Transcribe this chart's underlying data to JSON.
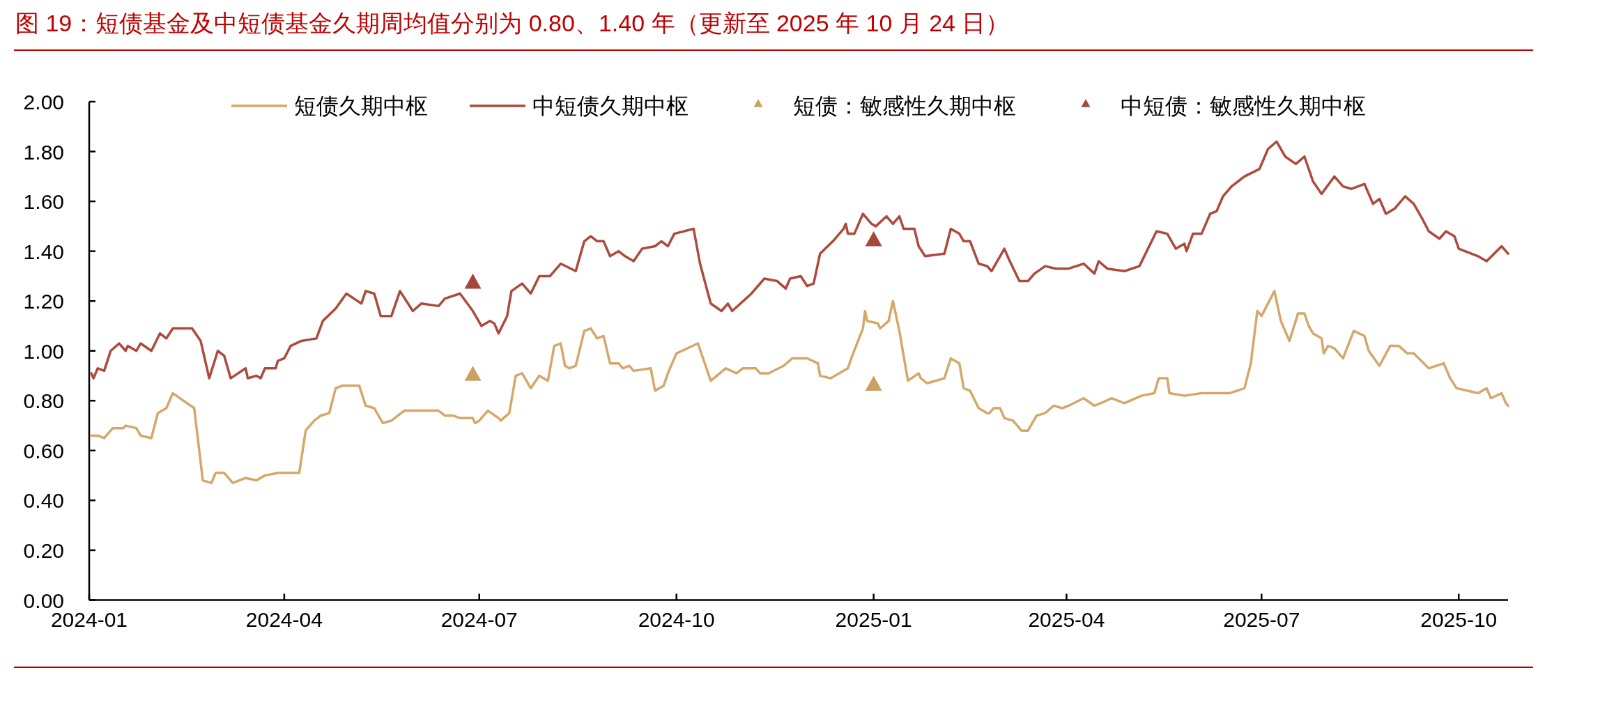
{
  "chart_data": {
    "type": "line",
    "title": "图 19：短债基金及中短债基金久期周均值分别为 0.80、1.40 年（更新至 2025 年 10 月 24 日）",
    "xlim": [
      "2024-01",
      "2025-10-24"
    ],
    "xticks": [
      "2024-01",
      "2024-04",
      "2024-07",
      "2024-10",
      "2025-01",
      "2025-04",
      "2025-07",
      "2025-10"
    ],
    "ylim": [
      0,
      2
    ],
    "yticks": [
      {
        "value": 0,
        "label": "0.00"
      },
      {
        "value": 0.2,
        "label": "0.20"
      },
      {
        "value": 0.4,
        "label": "0.40"
      },
      {
        "value": 0.6,
        "label": "0.60"
      },
      {
        "value": 0.8,
        "label": "0.80"
      },
      {
        "value": 1,
        "label": "1.00"
      },
      {
        "value": 1.2,
        "label": "1.20"
      },
      {
        "value": 1.4,
        "label": "1.40"
      },
      {
        "value": 1.6,
        "label": "1.60"
      },
      {
        "value": 1.8,
        "label": "1.80"
      },
      {
        "value": 2,
        "label": "2.00"
      }
    ],
    "legend": "top",
    "series": [
      {
        "name": "短债久期中枢",
        "color": "#d4a86a",
        "x": [
          "2024-01-02",
          "2024-01-05",
          "2024-01-08",
          "2024-01-12",
          "2024-01-17",
          "2024-01-18",
          "2024-01-23",
          "2024-01-25",
          "2024-01-30",
          "2024-02-02",
          "2024-02-06",
          "2024-02-09",
          "2024-02-19",
          "2024-02-23",
          "2024-02-27",
          "2024-02-29",
          "2024-03-04",
          "2024-03-08",
          "2024-03-14",
          "2024-03-19",
          "2024-03-23",
          "2024-03-29",
          "2024-04-02",
          "2024-04-08",
          "2024-04-11",
          "2024-04-15",
          "2024-04-18",
          "2024-04-22",
          "2024-04-25",
          "2024-04-28",
          "2024-05-06",
          "2024-05-09",
          "2024-05-13",
          "2024-05-17",
          "2024-05-21",
          "2024-05-27",
          "2024-06-12",
          "2024-06-15",
          "2024-06-19",
          "2024-06-22",
          "2024-06-28",
          "2024-06-29",
          "2024-07-01",
          "2024-07-05",
          "2024-07-10",
          "2024-07-11",
          "2024-07-15",
          "2024-07-18",
          "2024-07-21",
          "2024-07-25",
          "2024-07-29",
          "2024-08-02",
          "2024-08-05",
          "2024-08-08",
          "2024-08-10",
          "2024-08-12",
          "2024-08-15",
          "2024-08-19",
          "2024-08-22",
          "2024-08-25",
          "2024-08-28",
          "2024-08-31",
          "2024-09-04",
          "2024-09-06",
          "2024-09-09",
          "2024-09-11",
          "2024-09-19",
          "2024-09-21",
          "2024-09-25",
          "2024-09-27",
          "2024-10-01",
          "2024-10-11",
          "2024-10-17",
          "2024-10-24",
          "2024-10-29",
          "2024-11-01",
          "2024-11-07",
          "2024-11-09",
          "2024-11-13",
          "2024-11-20",
          "2024-11-24",
          "2024-12-01",
          "2024-12-06",
          "2024-12-07",
          "2024-12-12",
          "2024-12-20",
          "2024-12-22",
          "2024-12-27",
          "2024-12-28",
          "2024-12-29",
          "2025-01-03",
          "2025-01-04",
          "2025-01-08",
          "2025-01-10",
          "2025-01-13",
          "2025-01-17",
          "2025-01-22",
          "2025-01-23",
          "2025-01-26",
          "2025-02-03",
          "2025-02-06",
          "2025-02-10",
          "2025-02-12",
          "2025-02-15",
          "2025-02-19",
          "2025-02-23",
          "2025-02-24",
          "2025-02-26",
          "2025-03-01",
          "2025-03-03",
          "2025-03-07",
          "2025-03-11",
          "2025-03-14",
          "2025-03-18",
          "2025-03-22",
          "2025-03-26",
          "2025-03-30",
          "2025-04-02",
          "2025-04-09",
          "2025-04-14",
          "2025-04-17",
          "2025-04-22",
          "2025-04-28",
          "2025-05-06",
          "2025-05-12",
          "2025-05-14",
          "2025-05-18",
          "2025-05-19",
          "2025-05-26",
          "2025-06-03",
          "2025-06-16",
          "2025-06-23",
          "2025-06-26",
          "2025-06-29",
          "2025-07-01",
          "2025-07-07",
          "2025-07-10",
          "2025-07-14",
          "2025-07-18",
          "2025-07-21",
          "2025-07-23",
          "2025-07-25",
          "2025-07-29",
          "2025-07-30",
          "2025-08-01",
          "2025-08-04",
          "2025-08-08",
          "2025-08-13",
          "2025-08-18",
          "2025-08-20",
          "2025-08-25",
          "2025-08-30",
          "2025-09-03",
          "2025-09-07",
          "2025-09-10",
          "2025-09-17",
          "2025-09-24",
          "2025-09-27",
          "2025-09-30",
          "2025-10-10",
          "2025-10-14",
          "2025-10-16",
          "2025-10-21",
          "2025-10-23",
          "2025-10-24"
        ],
        "values": [
          0.66,
          0.66,
          0.65,
          0.69,
          0.69,
          0.7,
          0.69,
          0.66,
          0.65,
          0.75,
          0.77,
          0.83,
          0.77,
          0.48,
          0.47,
          0.51,
          0.51,
          0.47,
          0.49,
          0.48,
          0.5,
          0.51,
          0.51,
          0.51,
          0.68,
          0.72,
          0.74,
          0.75,
          0.85,
          0.86,
          0.86,
          0.78,
          0.77,
          0.71,
          0.72,
          0.76,
          0.76,
          0.74,
          0.74,
          0.73,
          0.73,
          0.71,
          0.72,
          0.76,
          0.73,
          0.72,
          0.75,
          0.9,
          0.91,
          0.85,
          0.9,
          0.88,
          1.02,
          1.03,
          0.94,
          0.93,
          0.94,
          1.08,
          1.09,
          1.05,
          1.06,
          0.95,
          0.95,
          0.93,
          0.94,
          0.92,
          0.93,
          0.84,
          0.86,
          0.91,
          0.99,
          1.03,
          0.88,
          0.93,
          0.91,
          0.93,
          0.93,
          0.91,
          0.91,
          0.94,
          0.97,
          0.97,
          0.95,
          0.9,
          0.89,
          0.93,
          0.98,
          1.09,
          1.16,
          1.12,
          1.11,
          1.09,
          1.12,
          1.2,
          1.08,
          0.88,
          0.91,
          0.89,
          0.87,
          0.89,
          0.97,
          0.95,
          0.85,
          0.84,
          0.77,
          0.75,
          0.75,
          0.77,
          0.77,
          0.73,
          0.72,
          0.68,
          0.68,
          0.74,
          0.75,
          0.78,
          0.77,
          0.78,
          0.81,
          0.78,
          0.79,
          0.81,
          0.79,
          0.82,
          0.83,
          0.89,
          0.89,
          0.83,
          0.82,
          0.83,
          0.83,
          0.85,
          0.95,
          1.16,
          1.14,
          1.24,
          1.12,
          1.04,
          1.15,
          1.15,
          1.1,
          1.07,
          1.05,
          0.99,
          1.02,
          1.01,
          0.97,
          1.08,
          1.06,
          1.0,
          0.94,
          1.02,
          1.02,
          0.99,
          0.99,
          0.93,
          0.95,
          0.89,
          0.85,
          0.83,
          0.85,
          0.81,
          0.83,
          0.79,
          0.78
        ]
      },
      {
        "name": "中短债久期中枢",
        "color": "#ad4a3e",
        "x": [
          "2024-01-02",
          "2024-01-03",
          "2024-01-05",
          "2024-01-08",
          "2024-01-11",
          "2024-01-15",
          "2024-01-18",
          "2024-01-19",
          "2024-01-23",
          "2024-01-25",
          "2024-01-30",
          "2024-02-03",
          "2024-02-06",
          "2024-02-09",
          "2024-02-18",
          "2024-02-22",
          "2024-02-26",
          "2024-03-01",
          "2024-03-04",
          "2024-03-07",
          "2024-03-14",
          "2024-03-15",
          "2024-03-19",
          "2024-03-21",
          "2024-03-23",
          "2024-03-28",
          "2024-03-29",
          "2024-04-01",
          "2024-04-04",
          "2024-04-09",
          "2024-04-16",
          "2024-04-19",
          "2024-04-25",
          "2024-04-30",
          "2024-05-07",
          "2024-05-09",
          "2024-05-13",
          "2024-05-16",
          "2024-05-21",
          "2024-05-25",
          "2024-05-31",
          "2024-06-04",
          "2024-06-12",
          "2024-06-15",
          "2024-06-22",
          "2024-06-28",
          "2024-07-02",
          "2024-07-06",
          "2024-07-08",
          "2024-07-10",
          "2024-07-14",
          "2024-07-16",
          "2024-07-21",
          "2024-07-25",
          "2024-07-29",
          "2024-08-03",
          "2024-08-08",
          "2024-08-15",
          "2024-08-19",
          "2024-08-22",
          "2024-08-25",
          "2024-08-28",
          "2024-08-31",
          "2024-09-04",
          "2024-09-07",
          "2024-09-11",
          "2024-09-15",
          "2024-09-21",
          "2024-09-24",
          "2024-09-27",
          "2024-09-30",
          "2024-10-09",
          "2024-10-12",
          "2024-10-17",
          "2024-10-22",
          "2024-10-25",
          "2024-10-27",
          "2024-11-05",
          "2024-11-11",
          "2024-11-17",
          "2024-11-21",
          "2024-11-23",
          "2024-11-28",
          "2024-12-01",
          "2024-12-04",
          "2024-12-07",
          "2024-12-13",
          "2024-12-18",
          "2024-12-19",
          "2024-12-20",
          "2024-12-23",
          "2024-12-27",
          "2024-12-31",
          "2025-01-02",
          "2025-01-07",
          "2025-01-10",
          "2025-01-13",
          "2025-01-15",
          "2025-01-20",
          "2025-01-22",
          "2025-01-25",
          "2025-02-03",
          "2025-02-06",
          "2025-02-10",
          "2025-02-12",
          "2025-02-15",
          "2025-02-19",
          "2025-02-23",
          "2025-02-25",
          "2025-03-03",
          "2025-03-05",
          "2025-03-10",
          "2025-03-14",
          "2025-03-17",
          "2025-03-22",
          "2025-03-27",
          "2025-04-02",
          "2025-04-09",
          "2025-04-14",
          "2025-04-16",
          "2025-04-20",
          "2025-04-28",
          "2025-05-05",
          "2025-05-13",
          "2025-05-18",
          "2025-05-22",
          "2025-05-26",
          "2025-05-27",
          "2025-05-30",
          "2025-06-03",
          "2025-06-07",
          "2025-06-10",
          "2025-06-13",
          "2025-06-17",
          "2025-06-23",
          "2025-06-30",
          "2025-07-04",
          "2025-07-08",
          "2025-07-12",
          "2025-07-17",
          "2025-07-21",
          "2025-07-25",
          "2025-07-29",
          "2025-08-04",
          "2025-08-08",
          "2025-08-12",
          "2025-08-18",
          "2025-08-22",
          "2025-08-25",
          "2025-08-28",
          "2025-09-01",
          "2025-09-06",
          "2025-09-10",
          "2025-09-14",
          "2025-09-17",
          "2025-09-22",
          "2025-09-25",
          "2025-09-29",
          "2025-10-01",
          "2025-10-10",
          "2025-10-14",
          "2025-10-21",
          "2025-10-23",
          "2025-10-24"
        ],
        "values": [
          0.91,
          0.89,
          0.93,
          0.92,
          1.0,
          1.03,
          1.0,
          1.02,
          1.0,
          1.03,
          1.0,
          1.07,
          1.05,
          1.09,
          1.09,
          1.04,
          0.89,
          1.0,
          0.98,
          0.89,
          0.93,
          0.89,
          0.9,
          0.89,
          0.93,
          0.93,
          0.96,
          0.97,
          1.02,
          1.04,
          1.05,
          1.12,
          1.17,
          1.23,
          1.19,
          1.24,
          1.23,
          1.14,
          1.14,
          1.24,
          1.16,
          1.19,
          1.18,
          1.21,
          1.23,
          1.16,
          1.1,
          1.12,
          1.11,
          1.07,
          1.14,
          1.24,
          1.27,
          1.23,
          1.3,
          1.3,
          1.35,
          1.32,
          1.44,
          1.46,
          1.44,
          1.44,
          1.38,
          1.4,
          1.38,
          1.36,
          1.41,
          1.42,
          1.44,
          1.42,
          1.47,
          1.49,
          1.35,
          1.19,
          1.16,
          1.19,
          1.16,
          1.23,
          1.29,
          1.28,
          1.25,
          1.29,
          1.3,
          1.26,
          1.27,
          1.39,
          1.44,
          1.49,
          1.51,
          1.47,
          1.47,
          1.55,
          1.51,
          1.5,
          1.54,
          1.51,
          1.54,
          1.49,
          1.49,
          1.42,
          1.38,
          1.39,
          1.49,
          1.47,
          1.44,
          1.44,
          1.35,
          1.34,
          1.32,
          1.41,
          1.37,
          1.28,
          1.28,
          1.31,
          1.34,
          1.33,
          1.33,
          1.35,
          1.31,
          1.36,
          1.33,
          1.32,
          1.34,
          1.48,
          1.47,
          1.41,
          1.43,
          1.4,
          1.47,
          1.47,
          1.55,
          1.56,
          1.62,
          1.66,
          1.7,
          1.73,
          1.81,
          1.84,
          1.78,
          1.75,
          1.78,
          1.68,
          1.63,
          1.7,
          1.66,
          1.65,
          1.67,
          1.59,
          1.61,
          1.55,
          1.57,
          1.62,
          1.59,
          1.53,
          1.48,
          1.45,
          1.48,
          1.46,
          1.41,
          1.38,
          1.36,
          1.42,
          1.4,
          1.39
        ]
      },
      {
        "name": "短债：敏感性久期中枢",
        "type": "scatter",
        "marker": "triangle",
        "color": "#c9a263",
        "x": [
          "2024-06-28",
          "2025-01-01"
        ],
        "values": [
          0.91,
          0.87
        ]
      },
      {
        "name": "中短债：敏感性久期中枢",
        "type": "scatter",
        "marker": "triangle",
        "color": "#a5473a",
        "x": [
          "2024-06-28",
          "2025-01-01"
        ],
        "values": [
          1.28,
          1.45
        ]
      }
    ]
  }
}
